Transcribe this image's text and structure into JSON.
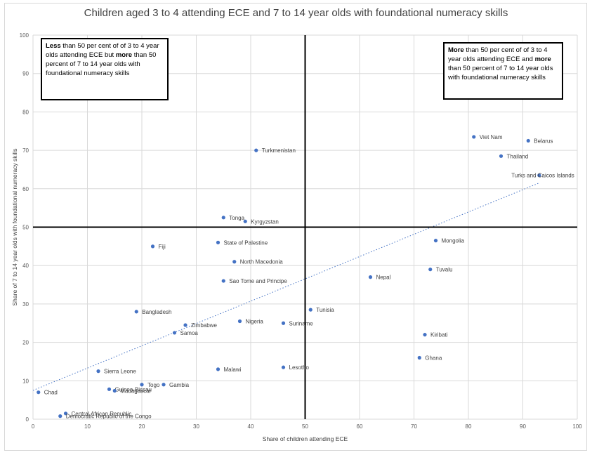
{
  "chart_data": {
    "type": "scatter",
    "title": "Children aged 3 to 4 attending ECE and 7 to 14 year olds with foundational numeracy skills",
    "xlabel": "Share of children attending ECE",
    "ylabel": "Share of 7 to 14 year olds with foundational numeracy skills",
    "xlim": [
      0,
      100
    ],
    "ylim": [
      0,
      100
    ],
    "xticks": [
      0,
      10,
      20,
      30,
      40,
      50,
      60,
      70,
      80,
      90,
      100
    ],
    "yticks": [
      0,
      10,
      20,
      30,
      40,
      50,
      60,
      70,
      80,
      90,
      100
    ],
    "grid": true,
    "point_color": "#4472c4",
    "trendline": {
      "style": "dotted",
      "from": [
        0,
        7.5
      ],
      "to": [
        93,
        61.5
      ]
    },
    "quadrant_lines": {
      "x": 50,
      "y": 50
    },
    "points": [
      {
        "label": "Viet Nam",
        "x": 81,
        "y": 73.5
      },
      {
        "label": "Belarus",
        "x": 91,
        "y": 72.5
      },
      {
        "label": "Thailand",
        "x": 86,
        "y": 68.5
      },
      {
        "label": "Turks and Caicos Islands",
        "x": 93,
        "y": 63.5
      },
      {
        "label": "Turkmenistan",
        "x": 41,
        "y": 70
      },
      {
        "label": "Tonga",
        "x": 35,
        "y": 52.5
      },
      {
        "label": "Kyrgyzstan",
        "x": 39,
        "y": 51.5
      },
      {
        "label": "Mongolia",
        "x": 74,
        "y": 46.5
      },
      {
        "label": "State of Palestine",
        "x": 34,
        "y": 46
      },
      {
        "label": "Fiji",
        "x": 22,
        "y": 45
      },
      {
        "label": "North Macedonia",
        "x": 37,
        "y": 41
      },
      {
        "label": "Tuvalu",
        "x": 73,
        "y": 39
      },
      {
        "label": "Nepal",
        "x": 62,
        "y": 37
      },
      {
        "label": "Sao Tome and Principe",
        "x": 35,
        "y": 36
      },
      {
        "label": "Tunisia",
        "x": 51,
        "y": 28.5
      },
      {
        "label": "Bangladesh",
        "x": 19,
        "y": 28
      },
      {
        "label": "Nigeria",
        "x": 38,
        "y": 25.5
      },
      {
        "label": "Suriname",
        "x": 46,
        "y": 25
      },
      {
        "label": "Zimbabwe",
        "x": 28,
        "y": 24.5
      },
      {
        "label": "Samoa",
        "x": 26,
        "y": 22.5
      },
      {
        "label": "Kiribati",
        "x": 72,
        "y": 22
      },
      {
        "label": "Ghana",
        "x": 71,
        "y": 16
      },
      {
        "label": "Lesotho",
        "x": 46,
        "y": 13.5
      },
      {
        "label": "Malawi",
        "x": 34,
        "y": 13
      },
      {
        "label": "Sierra Leone",
        "x": 12,
        "y": 12.5
      },
      {
        "label": "Togo",
        "x": 20,
        "y": 9
      },
      {
        "label": "Gambia",
        "x": 24,
        "y": 9
      },
      {
        "label": "Guinea-Bissau",
        "x": 14,
        "y": 7.8
      },
      {
        "label": "Madagascar",
        "x": 15,
        "y": 7.4
      },
      {
        "label": "Chad",
        "x": 1,
        "y": 7
      },
      {
        "label": "Central African Republic",
        "x": 6,
        "y": 1.5
      },
      {
        "label": "Democratic Republic of the Congo",
        "x": 5,
        "y": 0.8
      }
    ],
    "annotations": {
      "top_left": {
        "b1": "Less",
        "t1": " than 50 per cent of  of 3 to 4 year olds attending ECE but ",
        "b2": "more",
        "t2": " than 50 percent of 7 to 14 year olds with foundational numeracy skills"
      },
      "top_right": {
        "b1": "More",
        "t1": " than 50 per cent of  of 3 to 4 year olds attending ECE and ",
        "b2": "more",
        "t2": " than 50 percent of 7 to 14 year olds with foundational numeracy skills"
      }
    }
  }
}
